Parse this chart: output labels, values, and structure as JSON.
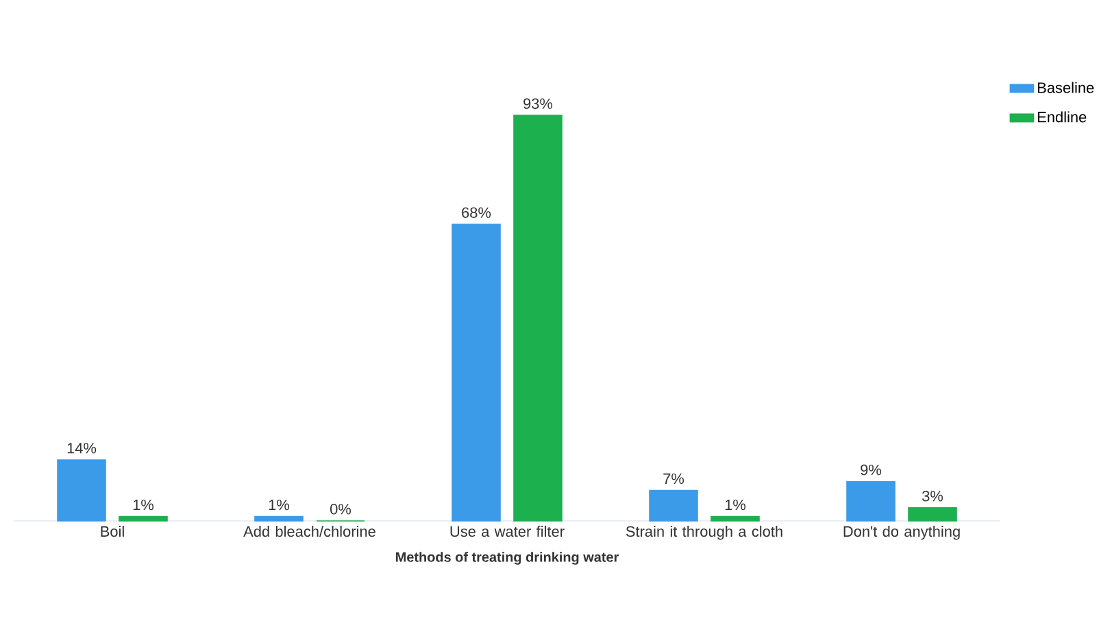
{
  "chart_data": {
    "type": "bar",
    "xlabel": "Methods of treating drinking water",
    "categories": [
      "Boil",
      "Add bleach/chlorine",
      "Use a water filter",
      "Strain it through a cloth",
      "Don't do anything"
    ],
    "series": [
      {
        "name": "Baseline",
        "color": "#3c9be8",
        "values": [
          14,
          1,
          68,
          7,
          9
        ],
        "value_labels": [
          "14%",
          "1%",
          "68%",
          "7%",
          "9%"
        ]
      },
      {
        "name": "Endline",
        "color": "#1db04f",
        "values": [
          1,
          0,
          93,
          1,
          3
        ],
        "value_labels": [
          "1%",
          "0%",
          "93%",
          "1%",
          "3%"
        ]
      }
    ],
    "legend": "top right"
  }
}
